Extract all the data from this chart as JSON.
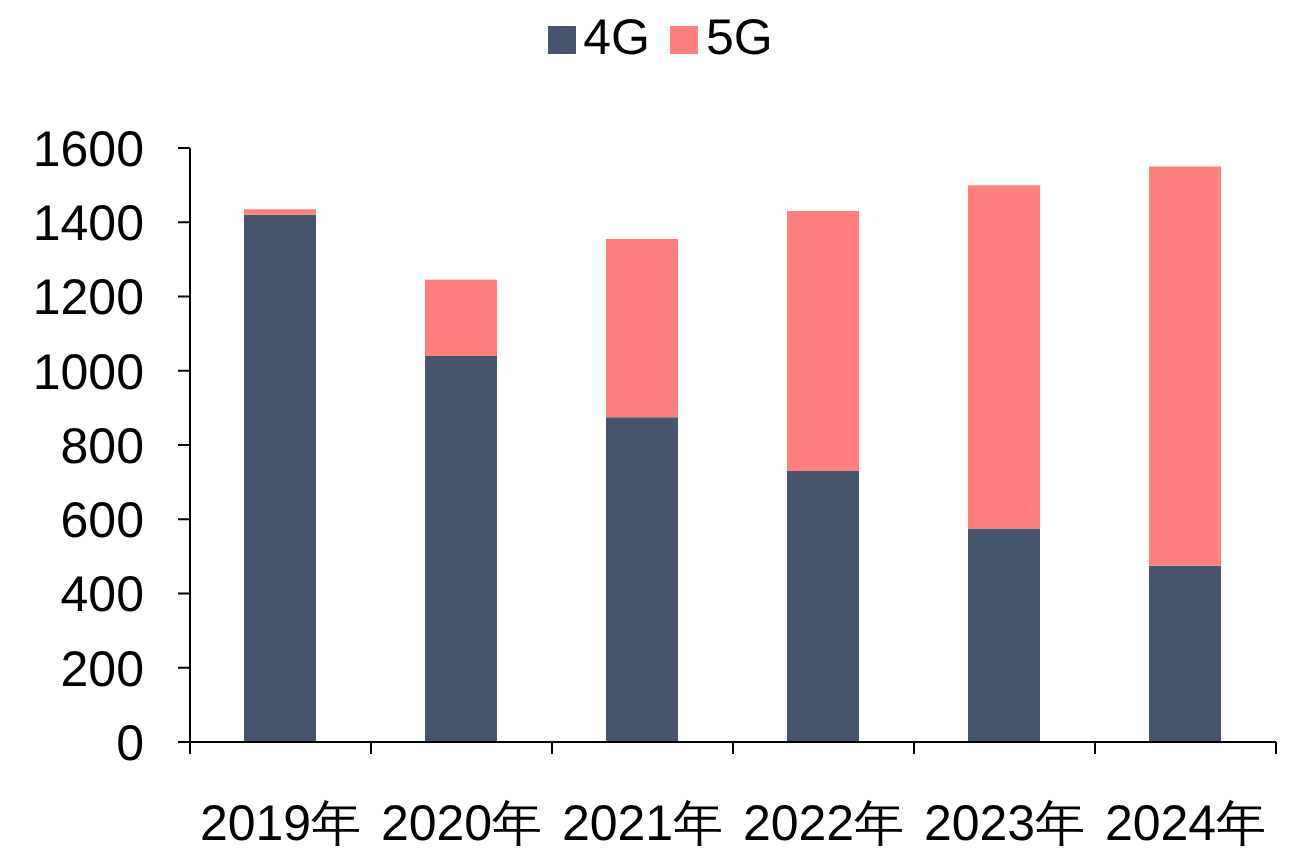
{
  "chart_data": {
    "type": "bar",
    "categories": [
      "2019年",
      "2020年",
      "2021年",
      "2022年",
      "2023年",
      "2024年"
    ],
    "series": [
      {
        "name": "4G",
        "color": "#46546e",
        "values": [
          1420,
          1040,
          875,
          730,
          575,
          475
        ]
      },
      {
        "name": "5G",
        "color": "#ff7f7f",
        "values": [
          15,
          205,
          480,
          700,
          925,
          1075
        ]
      }
    ],
    "stacked": true,
    "ylim": [
      0,
      1600
    ],
    "yticks": [
      0,
      200,
      400,
      600,
      800,
      1000,
      1200,
      1400,
      1600
    ],
    "grid": false,
    "legend": "top"
  }
}
